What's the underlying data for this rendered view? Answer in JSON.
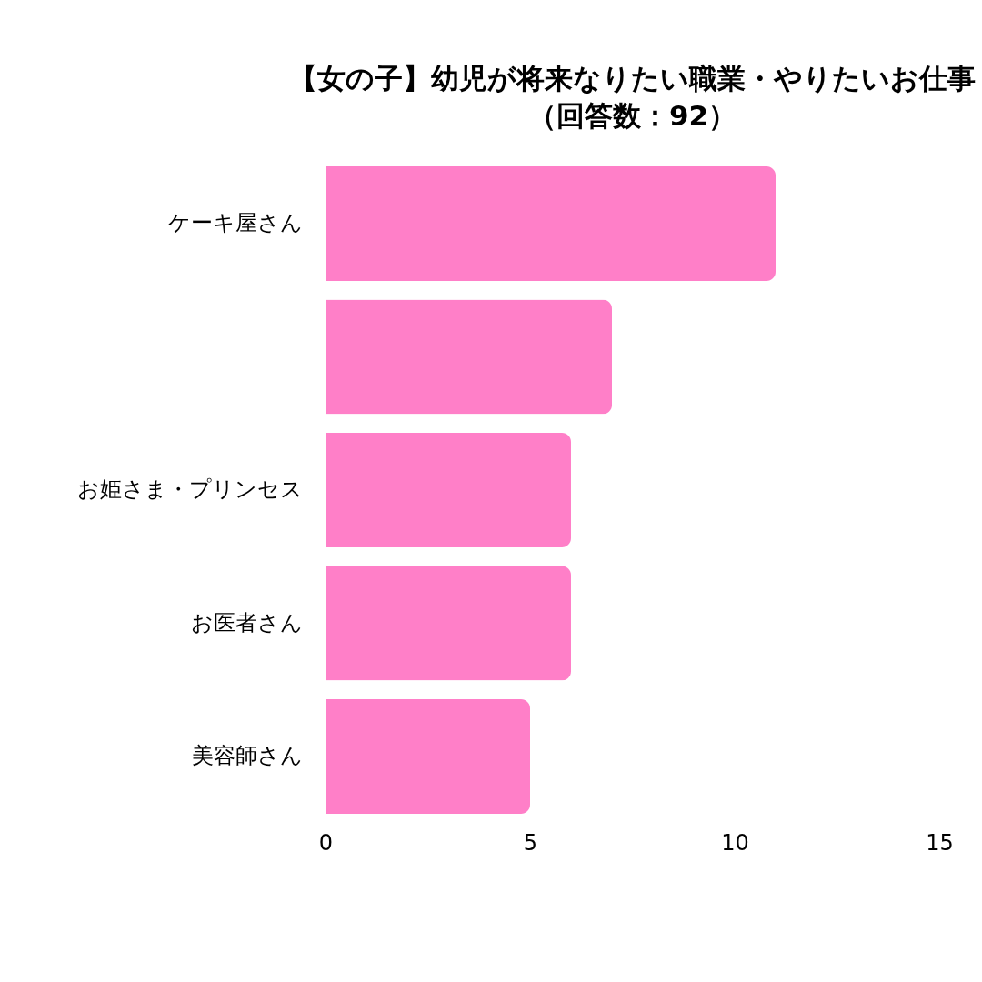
{
  "chart_data": {
    "type": "bar",
    "orientation": "horizontal",
    "title": "【女の子】幼児が将来なりたい職業・やりたいお仕事",
    "subtitle": "（回答数：92）",
    "categories": [
      "ケーキ屋さん",
      null,
      "お姫さま・プリンセス",
      "お医者さん",
      "美容師さん"
    ],
    "values": [
      11,
      7,
      6,
      6,
      5
    ],
    "color": "#ff7fc8",
    "xlim": [
      0,
      15
    ],
    "xticks": [
      0,
      5,
      10,
      15
    ],
    "grid": false
  }
}
